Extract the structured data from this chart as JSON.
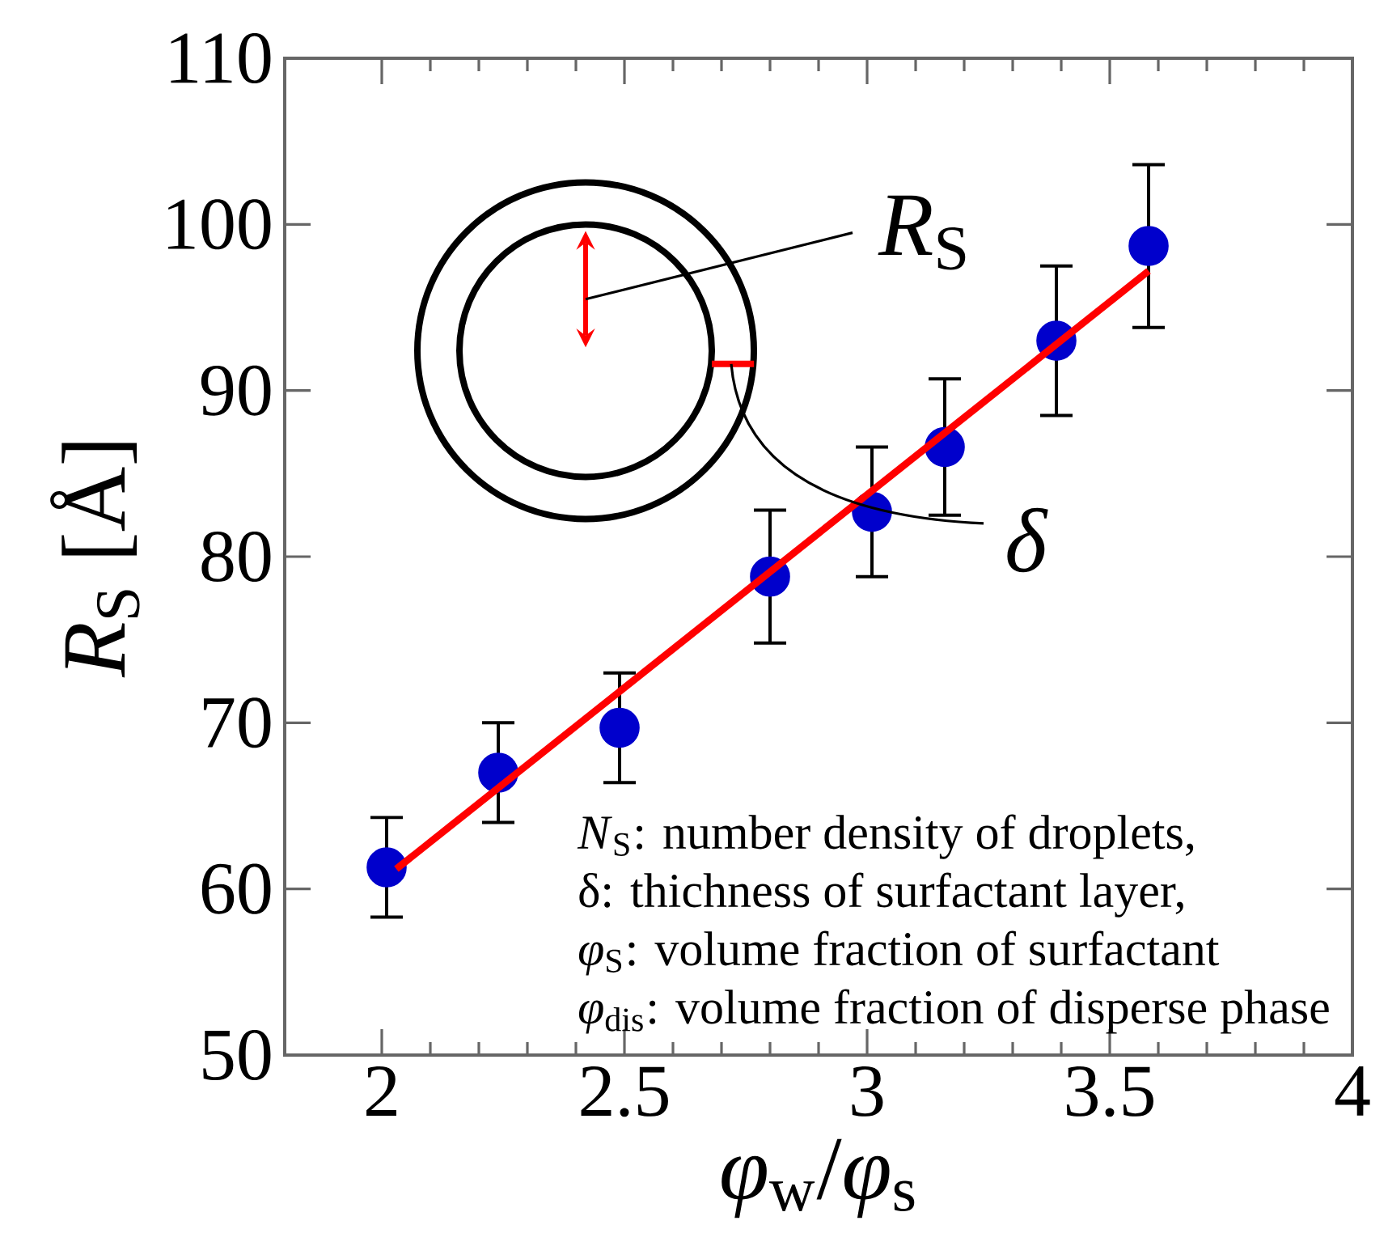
{
  "chart_data": {
    "type": "scatter",
    "xlabel": "*φ*$_{w}$/*φ*$_{s}$",
    "ylabel": "*R*$_{S}$ [Å]",
    "xlim": [
      1.8,
      4
    ],
    "ylim": [
      50,
      110
    ],
    "xticks": [
      2,
      2.5,
      3,
      3.5,
      4
    ],
    "yticks": [
      50,
      60,
      70,
      80,
      90,
      100,
      110
    ],
    "marker": "circle",
    "series": [
      {
        "color": "#0000cc",
        "x": [
          2.01,
          2.24,
          2.49,
          2.8,
          3.01,
          3.16,
          3.39,
          3.58
        ],
        "values": [
          61.3,
          67.0,
          69.7,
          78.8,
          82.7,
          86.6,
          93.0,
          98.7
        ],
        "errors": [
          3,
          3,
          3.3,
          4,
          3.9,
          4.1,
          4.5,
          4.9
        ]
      },
      {
        "type": "line",
        "color": "#ff0000",
        "marker": "none",
        "x": [
          2.03,
          3.58
        ],
        "values": [
          61.2,
          97.2
        ]
      }
    ],
    "annotations": [
      "*R*$_{S}$",
      "*δ*",
      "*N*$_{S}$: number density of droplets,",
      "δ: thichness of surfactant layer,",
      "*φ*$_{S}$: volume fraction of surfactant",
      "*φ*$_{dis}$: volume fraction of disperse phase"
    ]
  }
}
